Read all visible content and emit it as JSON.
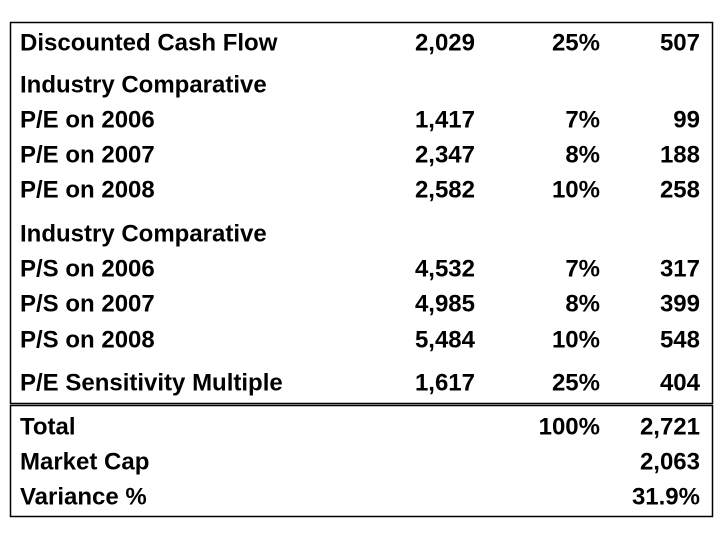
{
  "table": {
    "rows": [
      {
        "label": "Discounted Cash Flow",
        "value": "2,029",
        "weight": "25%",
        "result": "507"
      },
      {
        "label": "Industry Comparative"
      },
      {
        "label": "P/E on 2006",
        "value": "1,417",
        "weight": "7%",
        "result": "99"
      },
      {
        "label": "P/E on 2007",
        "value": "2,347",
        "weight": "8%",
        "result": "188"
      },
      {
        "label": "P/E on 2008",
        "value": "2,582",
        "weight": "10%",
        "result": "258"
      },
      {
        "label": "Industry Comparative"
      },
      {
        "label": "P/S on 2006",
        "value": "4,532",
        "weight": "7%",
        "result": "317"
      },
      {
        "label": "P/S on 2007",
        "value": "4,985",
        "weight": "8%",
        "result": "399"
      },
      {
        "label": "P/S on 2008",
        "value": "5,484",
        "weight": "10%",
        "result": "548"
      },
      {
        "label": "P/E Sensitivity Multiple",
        "value": "1,617",
        "weight": "25%",
        "result": "404"
      }
    ],
    "summary": [
      {
        "label": "Total",
        "weight": "100%",
        "result": "2,721"
      },
      {
        "label": "Market Cap",
        "result": "2,063"
      },
      {
        "label": "Variance %",
        "result": "31.9%"
      }
    ]
  }
}
